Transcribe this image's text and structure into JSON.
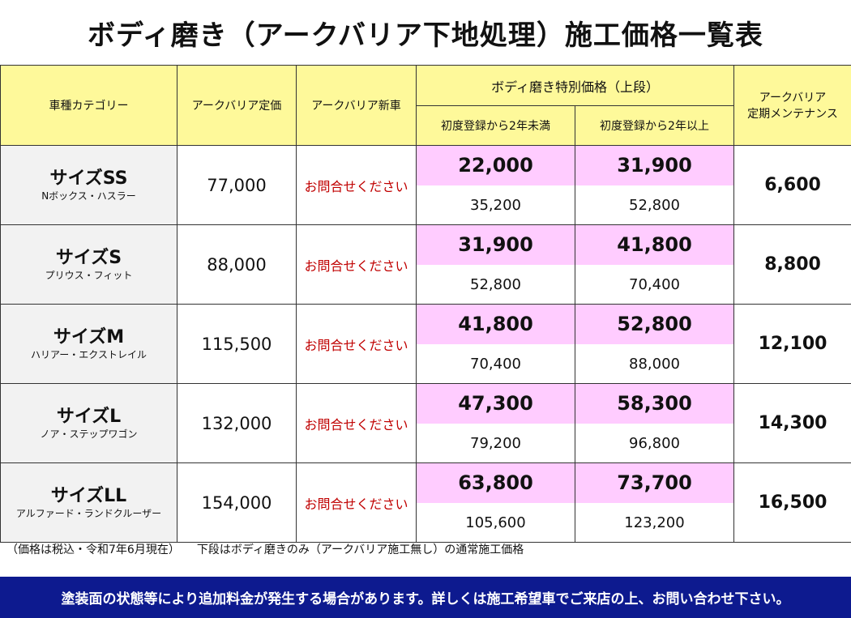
{
  "title": "ボディ磨き（アークバリア下地処理）施工価格一覧表",
  "header": {
    "category": "車種カテゴリー",
    "standard_price": "アークバリア定価",
    "new_car": "アークバリア新車",
    "special_price": "ボディ磨き特別価格（上段）",
    "under_2y": "初度登録から2年未満",
    "over_2y": "初度登録から2年以上",
    "maintenance_line1": "アークバリア",
    "maintenance_line2": "定期メンテナンス"
  },
  "rows": [
    {
      "name": "サイズSS",
      "cars": "Nボックス・ハスラー",
      "standard": "77,000",
      "new_car": "お問合せください",
      "u2_special": "22,000",
      "u2_normal": "35,200",
      "o2_special": "31,900",
      "o2_normal": "52,800",
      "maintenance": "6,600"
    },
    {
      "name": "サイズS",
      "cars": "プリウス・フィット",
      "standard": "88,000",
      "new_car": "お問合せください",
      "u2_special": "31,900",
      "u2_normal": "52,800",
      "o2_special": "41,800",
      "o2_normal": "70,400",
      "maintenance": "8,800"
    },
    {
      "name": "サイズM",
      "cars": "ハリアー・エクストレイル",
      "standard": "115,500",
      "new_car": "お問合せください",
      "u2_special": "41,800",
      "u2_normal": "70,400",
      "o2_special": "52,800",
      "o2_normal": "88,000",
      "maintenance": "12,100"
    },
    {
      "name": "サイズL",
      "cars": "ノア・ステップワゴン",
      "standard": "132,000",
      "new_car": "お問合せください",
      "u2_special": "47,300",
      "u2_normal": "79,200",
      "o2_special": "58,300",
      "o2_normal": "96,800",
      "maintenance": "14,300"
    },
    {
      "name": "サイズLL",
      "cars": "アルファード・ランドクルーザー",
      "standard": "154,000",
      "new_car": "お問合せください",
      "u2_special": "63,800",
      "u2_normal": "105,600",
      "o2_special": "73,700",
      "o2_normal": "123,200",
      "maintenance": "16,500"
    }
  ],
  "note": "（価格は税込・令和7年6月現在）　　下段はボディ磨きのみ（アークバリア施工無し）の通常施工価格",
  "banner": "塗装面の状態等により追加料金が発生する場合があります。詳しくは施工希望車でご来店の上、お問い合わせ下さい。",
  "colors": {
    "header_bg": "#fef99a",
    "category_bg": "#f2f2f2",
    "special_bg": "#ffccff",
    "inquiry_text": "#c00000",
    "banner_bg": "#0d1a8f"
  }
}
